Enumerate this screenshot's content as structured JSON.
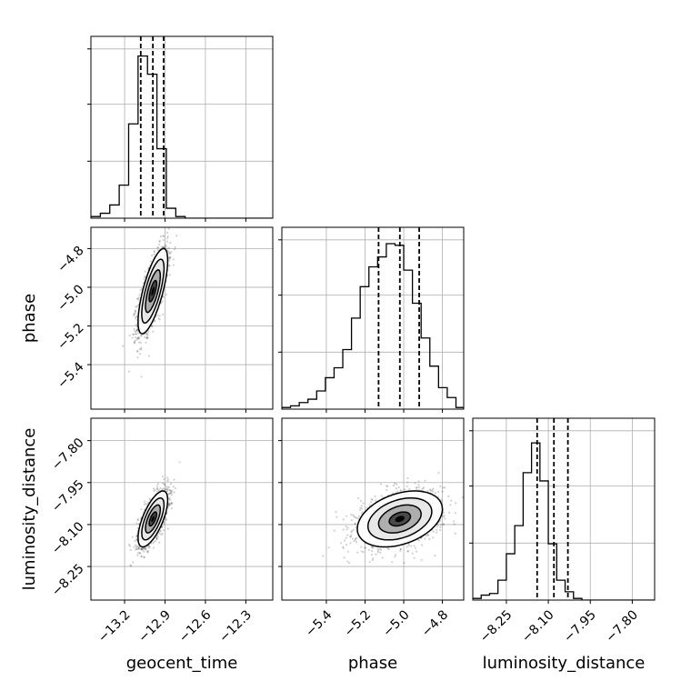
{
  "chart_data": {
    "type": "corner",
    "parameters": [
      "geocent_time",
      "phase",
      "luminosity_distance"
    ],
    "xlabels": {
      "geocent_time": "geocent_time",
      "phase": "phase",
      "luminosity_distance": "luminosity_distance"
    },
    "ylabels": {
      "phase": "phase",
      "luminosity_distance": "luminosity_distance"
    },
    "ranges": {
      "geocent_time": [
        -13.45,
        -12.1
      ],
      "phase": [
        -5.63,
        -4.69
      ],
      "luminosity_distance": [
        -8.37,
        -7.72
      ]
    },
    "ticks": {
      "geocent_time": [
        -13.2,
        -12.9,
        -12.6,
        -12.3
      ],
      "phase": [
        -5.4,
        -5.2,
        -5.0,
        -4.8
      ],
      "luminosity_distance": [
        -8.25,
        -8.1,
        -7.95,
        -7.8
      ]
    },
    "tick_labels": {
      "geocent_time": [
        "−13.2",
        "−12.9",
        "−12.6",
        "−12.3"
      ],
      "phase": [
        "−5.4",
        "−5.2",
        "−5.0",
        "−4.8"
      ],
      "luminosity_distance": [
        "−8.25",
        "−8.10",
        "−7.95",
        "−7.80"
      ]
    },
    "quantiles": {
      "geocent_time": [
        -13.08,
        -12.99,
        -12.91
      ],
      "phase": [
        -5.13,
        -5.02,
        -4.92
      ],
      "luminosity_distance": [
        -8.14,
        -8.08,
        -8.03
      ]
    },
    "histograms": {
      "geocent_time": {
        "bins": [
          -13.45,
          -13.38,
          -13.31,
          -13.24,
          -13.17,
          -13.1,
          -13.03,
          -12.96,
          -12.89,
          -12.82,
          -12.75,
          -12.68,
          -12.61,
          -12.54,
          -12.47,
          -12.4,
          -12.33,
          -12.26,
          -12.19,
          -12.12
        ],
        "counts": [
          0.01,
          0.03,
          0.08,
          0.2,
          0.57,
          0.98,
          0.87,
          0.42,
          0.06,
          0.01,
          0,
          0,
          0,
          0,
          0,
          0,
          0,
          0,
          0
        ]
      },
      "phase": {
        "bins": [
          -5.63,
          -5.585,
          -5.54,
          -5.495,
          -5.45,
          -5.405,
          -5.36,
          -5.315,
          -5.27,
          -5.225,
          -5.18,
          -5.135,
          -5.09,
          -5.045,
          -5.0,
          -4.955,
          -4.91,
          -4.865,
          -4.82,
          -4.775,
          -4.73,
          -4.69
        ],
        "counts": [
          0.01,
          0.02,
          0.04,
          0.06,
          0.11,
          0.19,
          0.25,
          0.36,
          0.55,
          0.74,
          0.86,
          0.92,
          1.0,
          0.99,
          0.84,
          0.64,
          0.43,
          0.26,
          0.13,
          0.07,
          0.01
        ]
      },
      "luminosity_distance": {
        "bins": [
          -8.37,
          -8.34,
          -8.31,
          -8.28,
          -8.25,
          -8.22,
          -8.19,
          -8.16,
          -8.13,
          -8.1,
          -8.07,
          -8.04,
          -8.01,
          -7.98,
          -7.95,
          -7.92,
          -7.89,
          -7.86,
          -7.83,
          -7.8,
          -7.77,
          -7.72
        ],
        "counts": [
          0.01,
          0.03,
          0.04,
          0.12,
          0.28,
          0.45,
          0.77,
          0.95,
          0.72,
          0.34,
          0.12,
          0.05,
          0.01,
          0,
          0,
          0,
          0,
          0,
          0,
          0,
          0
        ]
      }
    },
    "joint": [
      {
        "x": "geocent_time",
        "y": "phase",
        "center": [
          -12.99,
          -5.02
        ],
        "sigma": [
          0.055,
          0.11
        ],
        "rho": 0.72,
        "contour_levels_sigma": [
          0.5,
          1.0,
          1.5,
          2.0
        ]
      },
      {
        "x": "geocent_time",
        "y": "luminosity_distance",
        "center": [
          -12.99,
          -8.08
        ],
        "sigma": [
          0.055,
          0.05
        ],
        "rho": 0.68,
        "contour_levels_sigma": [
          0.5,
          1.0,
          1.5,
          2.0
        ]
      },
      {
        "x": "phase",
        "y": "luminosity_distance",
        "center": [
          -5.02,
          -8.08
        ],
        "sigma": [
          0.11,
          0.05
        ],
        "rho": 0.35,
        "contour_levels_sigma": [
          0.5,
          1.0,
          1.5,
          2.0
        ]
      }
    ],
    "grid": true
  }
}
